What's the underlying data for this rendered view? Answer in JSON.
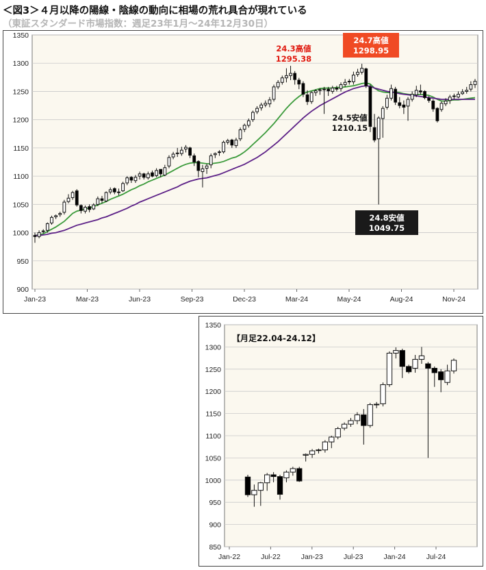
{
  "header": {
    "title": "＜図3＞４月以降の陽線・陰線の動向に相場の荒れ具合が現れている",
    "subtitle": "（東証スタンダード市場指数：週足23年1月～24年12月30日）"
  },
  "colors": {
    "plot_bg": "#fbf8ef",
    "up_candle": "#ffffff",
    "down_candle": "#000000",
    "ma_short": "#3a9a3a",
    "ma_long": "#5b1f86",
    "high_label": "#e0190f",
    "high_box": "#f04a24",
    "low_box": "#1a1a1a"
  },
  "chart_data": [
    {
      "type": "candlestick",
      "period": "weekly",
      "ylim": [
        900,
        1350
      ],
      "yticks": [
        900,
        950,
        1000,
        1050,
        1100,
        1150,
        1200,
        1250,
        1300,
        1350
      ],
      "xticks": [
        "Jan-23",
        "Mar-23",
        "Jun-23",
        "Sep-23",
        "Dec-23",
        "Mar-24",
        "May-24",
        "Aug-24",
        "Nov-24"
      ],
      "grid": true,
      "series": [
        {
          "kind": "ohlc",
          "open": [
            995,
            993,
            1002,
            1004,
            1017,
            1028,
            1032,
            1036,
            1055,
            1062,
            1074,
            1048,
            1038,
            1046,
            1042,
            1050,
            1060,
            1056,
            1072,
            1078,
            1071,
            1074,
            1088,
            1098,
            1092,
            1100,
            1104,
            1097,
            1106,
            1101,
            1112,
            1102,
            1118,
            1134,
            1140,
            1140,
            1148,
            1150,
            1136,
            1126,
            1108,
            1114,
            1120,
            1138,
            1142,
            1143,
            1160,
            1164,
            1154,
            1166,
            1183,
            1190,
            1200,
            1214,
            1221,
            1226,
            1228,
            1236,
            1258,
            1266,
            1274,
            1278,
            1282,
            1270,
            1264,
            1244,
            1232,
            1248,
            1252,
            1254,
            1254,
            1250,
            1256,
            1255,
            1262,
            1267,
            1267,
            1280,
            1284,
            1290,
            1258,
            1186,
            1166,
            1202,
            1222,
            1238,
            1254,
            1230,
            1226,
            1224,
            1236,
            1244,
            1251,
            1250,
            1238,
            1233,
            1220,
            1218,
            1228,
            1234,
            1242,
            1240,
            1246,
            1250,
            1254,
            1262
          ],
          "close": [
            993,
            1000,
            1003,
            1016,
            1027,
            1030,
            1034,
            1054,
            1061,
            1071,
            1049,
            1039,
            1045,
            1041,
            1049,
            1060,
            1057,
            1071,
            1076,
            1072,
            1072,
            1087,
            1097,
            1093,
            1098,
            1104,
            1098,
            1104,
            1100,
            1110,
            1104,
            1115,
            1133,
            1139,
            1141,
            1146,
            1151,
            1137,
            1125,
            1110,
            1113,
            1118,
            1136,
            1140,
            1143,
            1160,
            1163,
            1155,
            1164,
            1182,
            1190,
            1198,
            1213,
            1220,
            1226,
            1229,
            1235,
            1258,
            1266,
            1274,
            1278,
            1282,
            1271,
            1263,
            1245,
            1232,
            1248,
            1251,
            1253,
            1254,
            1251,
            1256,
            1254,
            1262,
            1266,
            1268,
            1279,
            1284,
            1291,
            1260,
            1188,
            1164,
            1203,
            1220,
            1238,
            1255,
            1231,
            1225,
            1222,
            1236,
            1245,
            1252,
            1249,
            1239,
            1234,
            1219,
            1198,
            1229,
            1233,
            1240,
            1241,
            1245,
            1249,
            1252,
            1262,
            1268
          ],
          "high": [
            1000,
            1004,
            1006,
            1018,
            1030,
            1032,
            1037,
            1058,
            1068,
            1074,
            1077,
            1050,
            1048,
            1050,
            1052,
            1064,
            1065,
            1073,
            1080,
            1080,
            1078,
            1090,
            1100,
            1100,
            1102,
            1108,
            1106,
            1108,
            1110,
            1114,
            1112,
            1120,
            1137,
            1143,
            1150,
            1152,
            1155,
            1152,
            1140,
            1128,
            1120,
            1122,
            1140,
            1142,
            1146,
            1163,
            1166,
            1166,
            1168,
            1186,
            1193,
            1202,
            1216,
            1224,
            1230,
            1234,
            1240,
            1262,
            1270,
            1278,
            1291,
            1295.38,
            1286,
            1274,
            1268,
            1252,
            1250,
            1254,
            1256,
            1258,
            1258,
            1260,
            1260,
            1266,
            1272,
            1272,
            1285,
            1290,
            1298.95,
            1292,
            1262,
            1210.15,
            1206,
            1224,
            1244,
            1262,
            1258,
            1240,
            1234,
            1240,
            1250,
            1260,
            1262,
            1252,
            1242,
            1236,
            1222,
            1232,
            1238,
            1244,
            1246,
            1250,
            1254,
            1258,
            1268,
            1272
          ],
          "low": [
            982,
            990,
            999,
            1000,
            1014,
            1024,
            1028,
            1032,
            1052,
            1058,
            1046,
            1034,
            1034,
            1036,
            1040,
            1047,
            1052,
            1054,
            1068,
            1068,
            1066,
            1072,
            1084,
            1088,
            1088,
            1094,
            1094,
            1094,
            1098,
            1098,
            1098,
            1100,
            1114,
            1130,
            1134,
            1136,
            1142,
            1132,
            1118,
            1098,
            1080,
            1104,
            1114,
            1132,
            1136,
            1140,
            1156,
            1150,
            1150,
            1162,
            1178,
            1186,
            1196,
            1210,
            1216,
            1222,
            1222,
            1232,
            1254,
            1262,
            1266,
            1270,
            1262,
            1254,
            1240,
            1226,
            1228,
            1242,
            1244,
            1210.15,
            1242,
            1246,
            1250,
            1250,
            1258,
            1262,
            1262,
            1276,
            1280,
            1256,
            1178,
            1160,
            1049.75,
            1168,
            1218,
            1234,
            1226,
            1220,
            1210,
            1198,
            1232,
            1240,
            1244,
            1236,
            1230,
            1214,
            1195,
            1214,
            1224,
            1228,
            1236,
            1238,
            1244,
            1246,
            1250,
            1256
          ]
        },
        {
          "name": "",
          "kind": "line",
          "color_key": "ma_short",
          "values": [
            995,
            996,
            998,
            1002,
            1006,
            1010,
            1015,
            1020,
            1027,
            1034,
            1038,
            1040,
            1042,
            1044,
            1046,
            1049,
            1052,
            1055,
            1059,
            1062,
            1065,
            1068,
            1072,
            1076,
            1079,
            1083,
            1086,
            1090,
            1093,
            1096,
            1099,
            1102,
            1106,
            1110,
            1114,
            1118,
            1121,
            1123,
            1124,
            1124,
            1123,
            1122,
            1122,
            1123,
            1124,
            1126,
            1129,
            1132,
            1134,
            1138,
            1143,
            1149,
            1156,
            1163,
            1170,
            1177,
            1185,
            1193,
            1202,
            1211,
            1220,
            1228,
            1235,
            1241,
            1246,
            1249,
            1251,
            1253,
            1255,
            1256,
            1256,
            1256,
            1257,
            1257,
            1258,
            1259,
            1260,
            1262,
            1264,
            1265,
            1263,
            1256,
            1251,
            1249,
            1248,
            1248,
            1249,
            1248,
            1246,
            1245,
            1244,
            1244,
            1245,
            1244,
            1243,
            1240,
            1236,
            1233,
            1233,
            1234,
            1235,
            1235,
            1236,
            1237,
            1238,
            1239
          ]
        },
        {
          "name": "",
          "kind": "line",
          "color_key": "ma_long",
          "values": [
            995,
            995,
            996,
            997,
            999,
            1000,
            1002,
            1004,
            1007,
            1010,
            1013,
            1015,
            1017,
            1019,
            1021,
            1023,
            1026,
            1028,
            1031,
            1034,
            1037,
            1040,
            1043,
            1047,
            1050,
            1054,
            1057,
            1060,
            1063,
            1066,
            1069,
            1072,
            1075,
            1078,
            1081,
            1085,
            1088,
            1091,
            1093,
            1095,
            1096,
            1097,
            1099,
            1101,
            1103,
            1106,
            1109,
            1112,
            1115,
            1118,
            1121,
            1125,
            1129,
            1133,
            1138,
            1143,
            1149,
            1155,
            1161,
            1168,
            1175,
            1182,
            1189,
            1196,
            1203,
            1209,
            1215,
            1220,
            1225,
            1229,
            1233,
            1237,
            1241,
            1245,
            1249,
            1252,
            1255,
            1257,
            1259,
            1260,
            1259,
            1256,
            1254,
            1252,
            1250,
            1249,
            1248,
            1246,
            1245,
            1244,
            1243,
            1242,
            1241,
            1240,
            1239,
            1238,
            1237,
            1236,
            1236,
            1236,
            1236,
            1236,
            1236,
            1236,
            1236,
            1236
          ]
        }
      ],
      "annotations": [
        {
          "label": "24.3高値",
          "value": "1295.38",
          "index": 61,
          "kind": "high"
        },
        {
          "label": "24.7高値",
          "value": "1298.95",
          "index": 78,
          "kind": "high-boxed"
        },
        {
          "label": "24.5安値",
          "value": "1210.15",
          "index": 69,
          "kind": "low"
        },
        {
          "label": "24.8安値",
          "value": "1049.75",
          "index": 82,
          "kind": "low-boxed"
        }
      ]
    },
    {
      "type": "candlestick",
      "period": "monthly",
      "title": "【月足22.04-24.12】",
      "ylim": [
        850,
        1350
      ],
      "yticks": [
        850,
        900,
        950,
        1000,
        1050,
        1100,
        1150,
        1200,
        1250,
        1300,
        1350
      ],
      "xticks": [
        "Jan-22",
        "Jul-22",
        "Jan-23",
        "Jul-23",
        "Jan-24",
        "Jul-24"
      ],
      "grid": true,
      "series": [
        {
          "kind": "ohlc",
          "open": [
            1007,
            967,
            977,
            994,
            1012,
            1008,
            1005,
            1018,
            1026,
            1056,
            1058,
            1067,
            1068,
            1086,
            1097,
            1117,
            1126,
            1134,
            1147,
            1123,
            1170,
            1172,
            1215,
            1286,
            1292,
            1256,
            1252,
            1272,
            1262,
            1252,
            1244,
            1220,
            1246
          ],
          "close": [
            967,
            977,
            994,
            1012,
            1008,
            968,
            1018,
            1026,
            998,
            1058,
            1066,
            1068,
            1086,
            1097,
            1116,
            1126,
            1134,
            1147,
            1123,
            1170,
            1171,
            1215,
            1286,
            1292,
            1256,
            1244,
            1272,
            1280,
            1252,
            1242,
            1226,
            1246,
            1270
          ],
          "high": [
            1012,
            990,
            996,
            1016,
            1018,
            1012,
            1022,
            1030,
            1030,
            1060,
            1070,
            1071,
            1090,
            1100,
            1120,
            1130,
            1140,
            1153,
            1160,
            1174,
            1176,
            1220,
            1290,
            1299,
            1296,
            1260,
            1282,
            1300,
            1266,
            1256,
            1250,
            1260,
            1274
          ],
          "low": [
            962,
            940,
            942,
            976,
            995,
            956,
            995,
            1010,
            996,
            1042,
            1050,
            1060,
            1062,
            1072,
            1092,
            1112,
            1120,
            1126,
            1080,
            1118,
            1162,
            1166,
            1210,
            1274,
            1230,
            1240,
            1242,
            1262,
            1050,
            1210,
            1198,
            1214,
            1240
          ]
        }
      ]
    }
  ]
}
